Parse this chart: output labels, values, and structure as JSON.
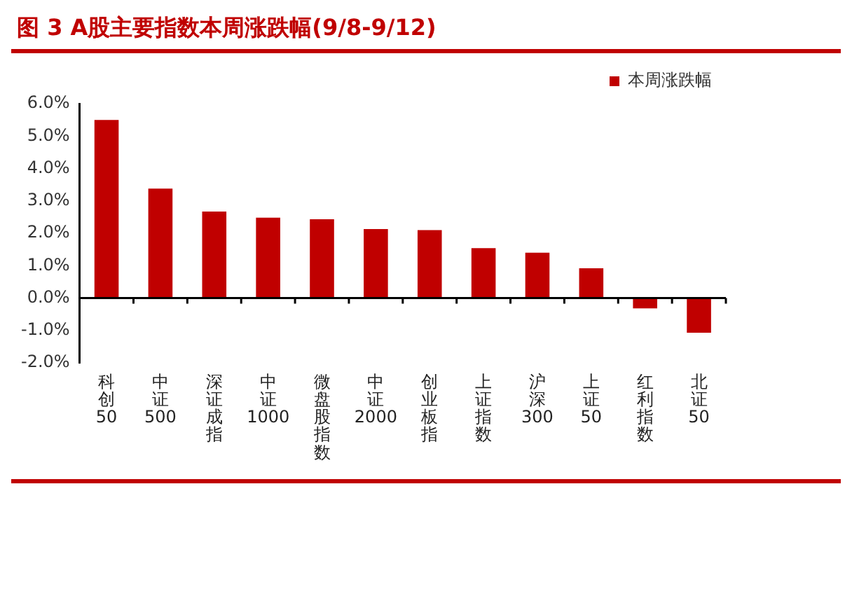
{
  "chart_data": {
    "type": "bar",
    "title": "图 3 A股主要指数本周涨跌幅(9/8-9/12)",
    "categories": [
      "科创50",
      "中证500",
      "深证成指",
      "中证1000",
      "微盘股指数",
      "中证2000",
      "创业板指",
      "上证指数",
      "沪深300",
      "上证50",
      "红利指数",
      "北证50"
    ],
    "series": [
      {
        "name": "本周涨跌幅",
        "color": "#c00000",
        "values": [
          5.5,
          3.38,
          2.67,
          2.48,
          2.43,
          2.13,
          2.1,
          1.54,
          1.4,
          0.92,
          -0.32,
          -1.07
        ]
      }
    ],
    "ylim": [
      -2,
      6
    ],
    "yticks": [
      {
        "value": -2,
        "label": "-2.0%"
      },
      {
        "value": -1,
        "label": "-1.0%"
      },
      {
        "value": 0,
        "label": "0.0%"
      },
      {
        "value": 1,
        "label": "1.0%"
      },
      {
        "value": 2,
        "label": "2.0%"
      },
      {
        "value": 3,
        "label": "3.0%"
      },
      {
        "value": 4,
        "label": "4.0%"
      },
      {
        "value": 5,
        "label": "5.0%"
      },
      {
        "value": 6,
        "label": "6.0%"
      }
    ],
    "legend": "top right"
  }
}
